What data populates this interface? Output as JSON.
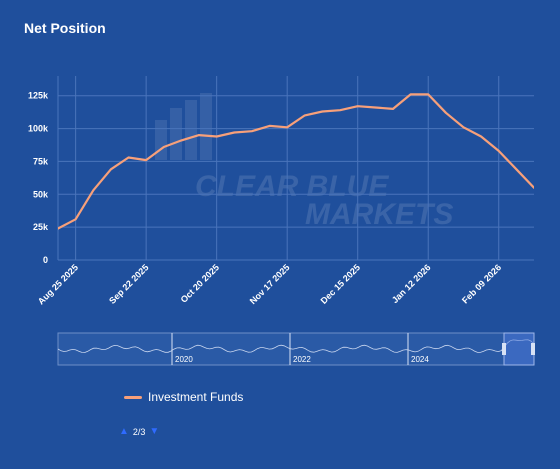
{
  "title": "Net Position",
  "watermark": {
    "line1": "CLEAR BLUE",
    "line2": "MARKETS"
  },
  "legend": {
    "label": "Investment Funds",
    "color": "#f7a07a"
  },
  "pager": {
    "up_icon": "▲",
    "text": "2/3",
    "down_icon": "▼"
  },
  "navigator": {
    "labels": [
      "2020",
      "2022",
      "2024"
    ]
  },
  "chart_data": {
    "type": "line",
    "title": "Net Position",
    "xlabel": "",
    "ylabel": "",
    "ylim": [
      0,
      140000
    ],
    "y_ticks": [
      0,
      25000,
      50000,
      75000,
      100000,
      125000
    ],
    "y_tick_labels": [
      "0",
      "25k",
      "50k",
      "75k",
      "100k",
      "125k"
    ],
    "x_tick_labels": [
      "Aug 25 2025",
      "Sep 22 2025",
      "Oct 20 2025",
      "Nov 17 2025",
      "Dec 15 2025",
      "Jan 12 2026",
      "Feb 09 2026"
    ],
    "grid": true,
    "legend_position": "bottom-left",
    "series": [
      {
        "name": "Investment Funds",
        "color": "#f7a07a",
        "x": [
          "2025-08-18",
          "2025-08-25",
          "2025-09-01",
          "2025-09-08",
          "2025-09-15",
          "2025-09-22",
          "2025-09-29",
          "2025-10-06",
          "2025-10-13",
          "2025-10-20",
          "2025-10-27",
          "2025-11-03",
          "2025-11-10",
          "2025-11-17",
          "2025-11-24",
          "2025-12-01",
          "2025-12-08",
          "2025-12-15",
          "2025-12-22",
          "2025-12-29",
          "2026-01-05",
          "2026-01-12",
          "2026-01-19",
          "2026-01-26",
          "2026-02-02",
          "2026-02-09",
          "2026-02-16",
          "2026-02-23"
        ],
        "values": [
          24000,
          31000,
          53000,
          69000,
          78000,
          76000,
          86000,
          91000,
          95000,
          94000,
          97000,
          98000,
          102000,
          101000,
          110000,
          113000,
          114000,
          117000,
          116000,
          115000,
          126000,
          126000,
          112000,
          101000,
          94000,
          83000,
          69000,
          55000
        ]
      }
    ]
  }
}
